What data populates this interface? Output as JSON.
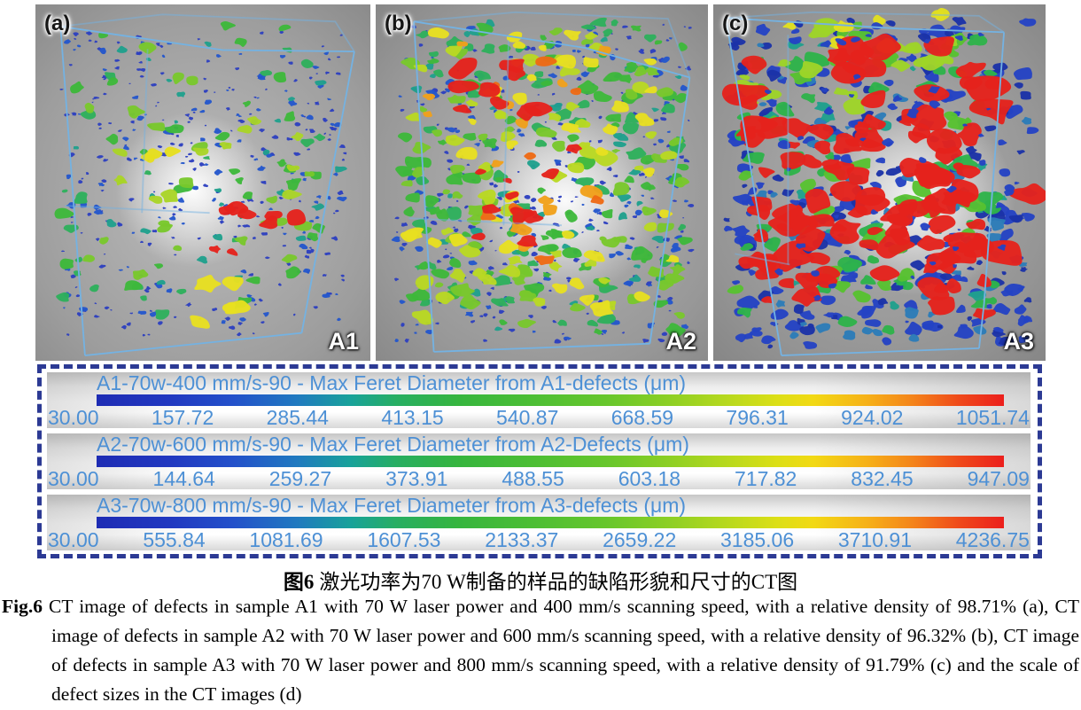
{
  "figure": {
    "panels": [
      {
        "corner_label": "(a)",
        "sample_label": "A1"
      },
      {
        "corner_label": "(b)",
        "sample_label": "A2"
      },
      {
        "corner_label": "(c)",
        "sample_label": "A3"
      }
    ],
    "scale_panel_label": "(d)",
    "scales": [
      {
        "title": "A1-70w-400 mm/s-90 - Max Feret Diameter from A1-defects (μm)",
        "ticks": [
          "30.00",
          "157.72",
          "285.44",
          "413.15",
          "540.87",
          "668.59",
          "796.31",
          "924.02",
          "1051.74"
        ]
      },
      {
        "title": "A2-70w-600 mm/s-90 - Max Feret Diameter from A2-Defects (μm)",
        "ticks": [
          "30.00",
          "144.64",
          "259.27",
          "373.91",
          "488.55",
          "603.18",
          "717.82",
          "832.45",
          "947.09"
        ]
      },
      {
        "title": "A3-70w-800 mm/s-90 - Max Feret Diameter from A3-defects (μm)",
        "ticks": [
          "30.00",
          "555.84",
          "1081.69",
          "1607.53",
          "2133.37",
          "2659.22",
          "3185.06",
          "3710.91",
          "4236.75"
        ]
      }
    ]
  },
  "caption": {
    "zh_bold": "图6",
    "zh_text": "激光功率为70 W制备的样品的缺陷形貌和尺寸的CT图",
    "en_bold": "Fig.6",
    "en_text": "CT image of defects in sample A1 with 70 W laser power and 400 mm/s scanning speed, with a relative density of 98.71% (a), CT image of defects in sample A2 with 70 W laser power and 600 mm/s scanning speed, with a relative density of 96.32% (b), CT image of defects in sample A3 with 70 W laser power and 800 mm/s scanning speed, with a relative density of 91.79% (c) and the scale of defect sizes in the CT images (d)"
  },
  "colors": {
    "scale_text_blue": "#4d90d5",
    "dashed_border_navy": "#2c3a94",
    "wireframe_blue": "#74b2e2",
    "colormap_jet": [
      "#1e2cb4",
      "#2350ca",
      "#18a29a",
      "#36b53e",
      "#8ccf24",
      "#dcdf16",
      "#f6b018",
      "#ef4a1a",
      "#ec1f1c"
    ]
  }
}
